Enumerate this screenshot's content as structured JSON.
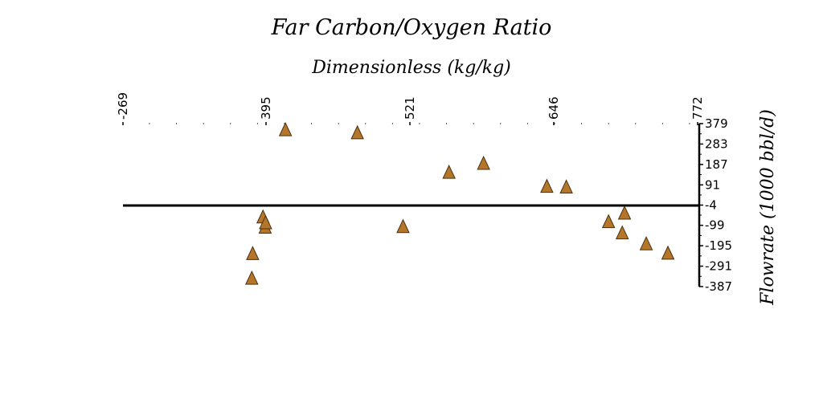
{
  "chart_data": {
    "type": "scatter",
    "title": "Far Carbon/Oxygen Ratio",
    "xlabel": "Dimensionless (kg/kg)",
    "ylabel": "Flowrate (1000 bbl/d)",
    "xlim": [
      -269,
      772
    ],
    "ylim": [
      -387,
      379
    ],
    "x_ticks": [
      "-269",
      "395",
      "521",
      "646",
      "772"
    ],
    "y_ticks": [
      "379",
      "283",
      "187",
      "91",
      "-4",
      "-99",
      "-195",
      "-291",
      "-387"
    ],
    "x_axis_position": "top",
    "y_axis_position": "right",
    "grid": false,
    "marker": "triangle",
    "colors": {
      "marker_fill": "#b5762a",
      "marker_stroke": "#4a3010",
      "axis": "#000000"
    },
    "series": [
      {
        "values": [
          {
            "x": 329,
            "y": -346
          },
          {
            "x": 333,
            "y": -230
          },
          {
            "x": 381,
            "y": -58
          },
          {
            "x": 391,
            "y": -106
          },
          {
            "x": 393,
            "y": -85
          },
          {
            "x": 412,
            "y": 352
          },
          {
            "x": 475,
            "y": 338
          },
          {
            "x": 515,
            "y": -103
          },
          {
            "x": 555,
            "y": 152
          },
          {
            "x": 585,
            "y": 194
          },
          {
            "x": 640,
            "y": 86
          },
          {
            "x": 657,
            "y": 83
          },
          {
            "x": 694,
            "y": -80
          },
          {
            "x": 706,
            "y": -133
          },
          {
            "x": 708,
            "y": -40
          },
          {
            "x": 727,
            "y": -184
          },
          {
            "x": 746,
            "y": -228
          }
        ]
      }
    ]
  }
}
